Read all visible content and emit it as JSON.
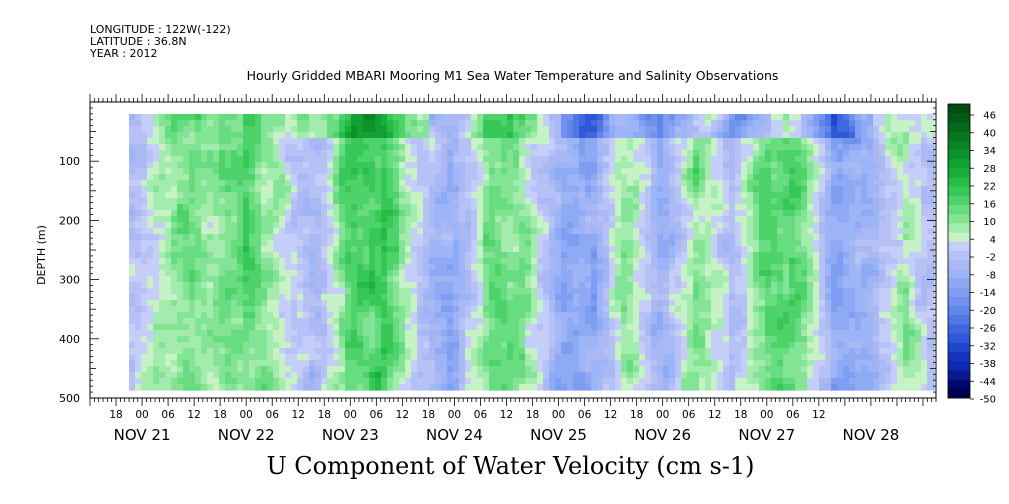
{
  "header": {
    "longitude": "LONGITUDE : 122W(-122)",
    "latitude": "LATITUDE : 36.8N",
    "year": "YEAR : 2012"
  },
  "chart_data": {
    "type": "heatmap",
    "title": "Hourly Gridded MBARI Mooring M1 Sea Water Temperature and Salinity Observations",
    "xlabel": "U Component of Water Velocity (cm s-1)",
    "ylabel": "DEPTH (m)",
    "ylim": [
      500,
      0
    ],
    "yticks": [
      100,
      200,
      300,
      400,
      500
    ],
    "x_start": "NOV 20 12:00",
    "x_end": "NOV 28 15:00",
    "data_start": "NOV 20 21:00",
    "hour_labels": [
      {
        "day": 20,
        "hour": 18,
        "text": "18"
      },
      {
        "day": 21,
        "hour": 0,
        "text": "00"
      },
      {
        "day": 21,
        "hour": 6,
        "text": "06"
      },
      {
        "day": 21,
        "hour": 12,
        "text": "12"
      },
      {
        "day": 21,
        "hour": 18,
        "text": "18"
      },
      {
        "day": 22,
        "hour": 0,
        "text": "00"
      },
      {
        "day": 22,
        "hour": 6,
        "text": "06"
      },
      {
        "day": 22,
        "hour": 12,
        "text": "12"
      },
      {
        "day": 22,
        "hour": 18,
        "text": "18"
      },
      {
        "day": 23,
        "hour": 0,
        "text": "00"
      },
      {
        "day": 23,
        "hour": 6,
        "text": "06"
      },
      {
        "day": 23,
        "hour": 12,
        "text": "12"
      },
      {
        "day": 23,
        "hour": 18,
        "text": "18"
      },
      {
        "day": 24,
        "hour": 0,
        "text": "00"
      },
      {
        "day": 24,
        "hour": 6,
        "text": "06"
      },
      {
        "day": 24,
        "hour": 12,
        "text": "12"
      },
      {
        "day": 24,
        "hour": 18,
        "text": "18"
      },
      {
        "day": 25,
        "hour": 0,
        "text": "00"
      },
      {
        "day": 25,
        "hour": 6,
        "text": "06"
      },
      {
        "day": 25,
        "hour": 12,
        "text": "12"
      },
      {
        "day": 25,
        "hour": 18,
        "text": "18"
      },
      {
        "day": 26,
        "hour": 0,
        "text": "00"
      },
      {
        "day": 26,
        "hour": 6,
        "text": "06"
      },
      {
        "day": 26,
        "hour": 12,
        "text": "12"
      },
      {
        "day": 26,
        "hour": 18,
        "text": "18"
      },
      {
        "day": 27,
        "hour": 0,
        "text": "00"
      },
      {
        "day": 27,
        "hour": 6,
        "text": "06"
      },
      {
        "day": 27,
        "hour": 12,
        "text": "12"
      }
    ],
    "day_labels": [
      {
        "day": 21,
        "text": "NOV 21"
      },
      {
        "day": 22,
        "text": "NOV 22"
      },
      {
        "day": 23,
        "text": "NOV 23"
      },
      {
        "day": 24,
        "text": "NOV 24"
      },
      {
        "day": 25,
        "text": "NOV 25"
      },
      {
        "day": 26,
        "text": "NOV 26"
      },
      {
        "day": 27,
        "text": "NOV 27"
      },
      {
        "day": 28,
        "text": "NOV 28"
      }
    ],
    "colorbar": {
      "levels": [
        -50,
        -44,
        -38,
        -32,
        -26,
        -20,
        -14,
        -8,
        -2,
        4,
        10,
        16,
        22,
        28,
        34,
        40,
        46
      ],
      "label_values": [
        46,
        40,
        34,
        28,
        22,
        16,
        10,
        4,
        -2,
        -8,
        -14,
        -20,
        -26,
        -32,
        -38,
        -44,
        -50
      ],
      "colors": {
        "-50": "#00004e",
        "-47": "#00066e",
        "-44": "#0a1a96",
        "-41": "#0f2aae",
        "-38": "#1434c0",
        "-35": "#1f46cc",
        "-32": "#2e58d8",
        "-29": "#3f68df",
        "-26": "#5078e5",
        "-23": "#6086ea",
        "-20": "#7092ee",
        "-17": "#7f9ef1",
        "-14": "#8eaaf4",
        "-11": "#9db4f6",
        "-8": "#aab8f4",
        "-5": "#b6c2f6",
        "-2": "#c4cef8",
        "1": "#c6f2c6",
        "4": "#a4ecae",
        "7": "#84e496",
        "10": "#68dc80",
        "13": "#4ed26a",
        "16": "#38c858",
        "19": "#26bc48",
        "22": "#1aae3a",
        "25": "#12a032",
        "28": "#0c922c",
        "31": "#088426",
        "34": "#067620",
        "37": "#04681a",
        "40": "#035a16",
        "43": "#024c12"
      }
    },
    "description": "Time-depth section of hourly U velocity; alternating vertical bands of negative (blue/lavender) and positive (green) flow, strongest negative near surface Nov 25-27, strong positive patches near NOV 23 and NOV 26."
  }
}
